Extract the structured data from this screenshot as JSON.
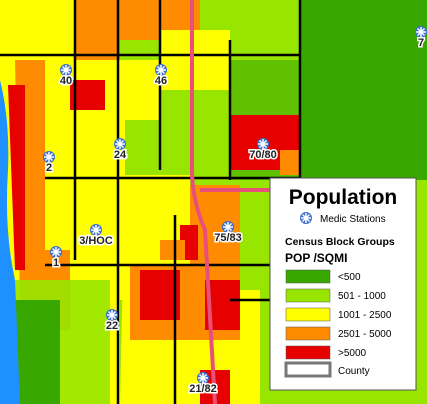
{
  "legend": {
    "title": "Population",
    "symbol_label": "Medic Stations",
    "layer_title": "Census Block Groups",
    "field": "POP /SQMI",
    "classes": [
      {
        "label": "<500",
        "color": "#38a800"
      },
      {
        "label": "501 - 1000",
        "color": "#98e600"
      },
      {
        "label": "1001 - 2500",
        "color": "#ffff00"
      },
      {
        "label": "2501 - 5000",
        "color": "#ff8c00"
      },
      {
        "label": ">5000",
        "color": "#e60000"
      }
    ],
    "county": "County"
  },
  "stations": [
    {
      "label": "40"
    },
    {
      "label": "46"
    },
    {
      "label": "2"
    },
    {
      "label": "24"
    },
    {
      "label": "70/80"
    },
    {
      "label": "3/HOC"
    },
    {
      "label": "75/83"
    },
    {
      "label": "1"
    },
    {
      "label": "22"
    },
    {
      "label": "21/82"
    },
    {
      "label": "7"
    }
  ]
}
